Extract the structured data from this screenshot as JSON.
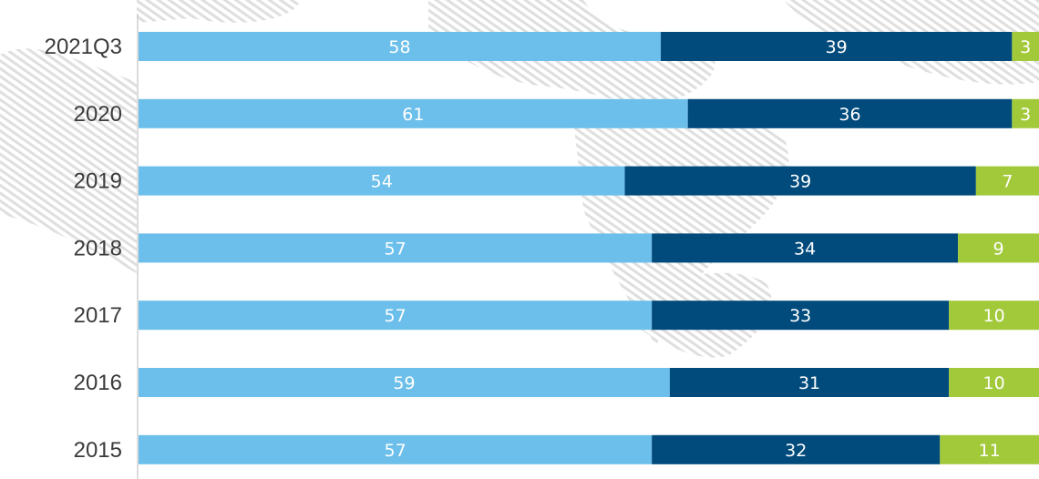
{
  "chart_data": {
    "type": "bar",
    "orientation": "horizontal",
    "stacked": true,
    "categories": [
      "2021Q3",
      "2020",
      "2019",
      "2018",
      "2017",
      "2016",
      "2015"
    ],
    "series": [
      {
        "values": [
          58,
          61,
          54,
          57,
          57,
          59,
          57
        ],
        "color": "#6bbfea"
      },
      {
        "values": [
          39,
          36,
          39,
          34,
          33,
          31,
          32
        ],
        "color": "#004a7c"
      },
      {
        "values": [
          3,
          3,
          7,
          9,
          10,
          10,
          11
        ],
        "color": "#a2c93a"
      }
    ],
    "xlim": [
      0,
      100
    ],
    "grid": false,
    "legend": "none"
  }
}
